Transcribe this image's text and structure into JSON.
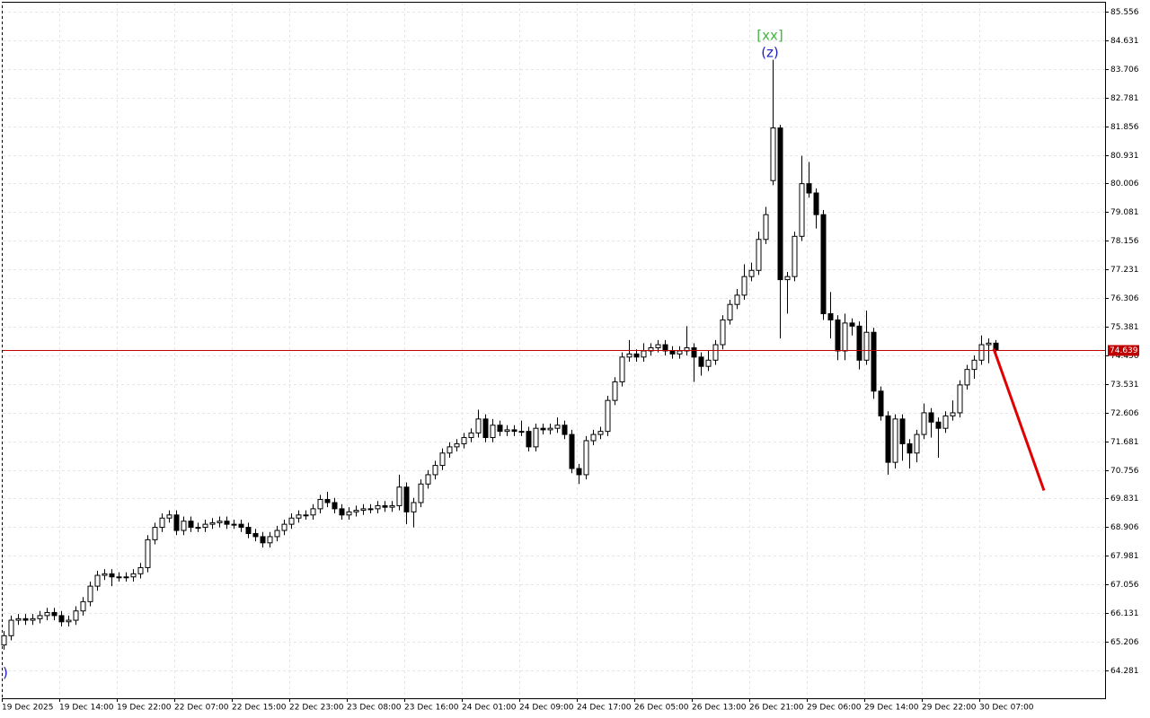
{
  "chart_data": {
    "type": "candlestick",
    "categories": [
      "19 Dec 2025",
      null,
      null,
      null,
      null,
      null,
      null,
      null,
      "19 Dec 14:00",
      null,
      null,
      null,
      null,
      null,
      null,
      null,
      "19 Dec 22:00",
      null,
      null,
      null,
      null,
      null,
      null,
      null,
      "22 Dec 07:00",
      null,
      null,
      null,
      null,
      null,
      null,
      null,
      "22 Dec 15:00",
      null,
      null,
      null,
      null,
      null,
      null,
      null,
      "22 Dec 23:00",
      null,
      null,
      null,
      null,
      null,
      null,
      null,
      "23 Dec 08:00",
      null,
      null,
      null,
      null,
      null,
      null,
      null,
      "23 Dec 16:00",
      null,
      null,
      null,
      null,
      null,
      null,
      null,
      "24 Dec 01:00",
      null,
      null,
      null,
      null,
      null,
      null,
      null,
      "24 Dec 09:00",
      null,
      null,
      null,
      null,
      null,
      null,
      null,
      "24 Dec 17:00",
      null,
      null,
      null,
      null,
      null,
      null,
      null,
      "26 Dec 05:00",
      null,
      null,
      null,
      null,
      null,
      null,
      null,
      "26 Dec 13:00",
      null,
      null,
      null,
      null,
      null,
      null,
      null,
      "26 Dec 21:00",
      null,
      null,
      null,
      null,
      null,
      null,
      null,
      "29 Dec 06:00",
      null,
      null,
      null,
      null,
      null,
      null,
      null,
      "29 Dec 14:00",
      null,
      null,
      null,
      null,
      null,
      null,
      null,
      "29 Dec 22:00",
      null,
      null,
      null,
      null,
      null,
      null,
      null,
      "30 Dec 07:00",
      null,
      null
    ],
    "candles": [
      [
        65.1,
        65.55,
        64.95,
        65.4
      ],
      [
        65.4,
        66.05,
        65.25,
        65.9
      ],
      [
        65.9,
        66.1,
        65.75,
        65.95
      ],
      [
        65.95,
        66.1,
        65.75,
        65.9
      ],
      [
        65.9,
        66.1,
        65.75,
        65.95
      ],
      [
        65.95,
        66.2,
        65.8,
        66.05
      ],
      [
        66.05,
        66.3,
        65.9,
        66.15
      ],
      [
        66.15,
        66.3,
        65.9,
        66.05
      ],
      [
        66.05,
        66.2,
        65.7,
        65.85
      ],
      [
        65.85,
        66.05,
        65.7,
        65.9
      ],
      [
        65.9,
        66.35,
        65.75,
        66.2
      ],
      [
        66.2,
        66.65,
        66.05,
        66.5
      ],
      [
        66.5,
        67.15,
        66.35,
        67.0
      ],
      [
        67.0,
        67.5,
        66.85,
        67.35
      ],
      [
        67.35,
        67.55,
        67.2,
        67.4
      ],
      [
        67.4,
        67.55,
        67.0,
        67.3
      ],
      [
        67.3,
        67.45,
        67.15,
        67.3
      ],
      [
        67.3,
        67.45,
        67.15,
        67.3
      ],
      [
        67.3,
        67.55,
        67.15,
        67.4
      ],
      [
        67.4,
        67.75,
        67.25,
        67.6
      ],
      [
        67.6,
        68.65,
        67.45,
        68.5
      ],
      [
        68.5,
        69.05,
        68.35,
        68.9
      ],
      [
        68.9,
        69.35,
        68.75,
        69.2
      ],
      [
        69.2,
        69.45,
        69.05,
        69.3
      ],
      [
        69.3,
        69.45,
        68.65,
        68.8
      ],
      [
        68.8,
        69.25,
        68.65,
        69.1
      ],
      [
        69.1,
        69.25,
        68.75,
        68.9
      ],
      [
        68.9,
        69.05,
        68.75,
        68.9
      ],
      [
        68.9,
        69.15,
        68.75,
        69.0
      ],
      [
        69.0,
        69.2,
        68.85,
        69.05
      ],
      [
        69.05,
        69.25,
        68.9,
        69.1
      ],
      [
        69.1,
        69.25,
        68.85,
        69.0
      ],
      [
        69.0,
        69.15,
        68.85,
        69.0
      ],
      [
        69.0,
        69.15,
        68.75,
        68.9
      ],
      [
        68.9,
        69.05,
        68.55,
        68.7
      ],
      [
        68.7,
        68.85,
        68.45,
        68.6
      ],
      [
        68.6,
        68.75,
        68.25,
        68.4
      ],
      [
        68.4,
        68.75,
        68.25,
        68.6
      ],
      [
        68.6,
        68.95,
        68.45,
        68.8
      ],
      [
        68.8,
        69.15,
        68.65,
        69.0
      ],
      [
        69.0,
        69.35,
        68.85,
        69.2
      ],
      [
        69.2,
        69.45,
        69.05,
        69.3
      ],
      [
        69.3,
        69.45,
        69.15,
        69.3
      ],
      [
        69.3,
        69.65,
        69.15,
        69.5
      ],
      [
        69.5,
        69.95,
        69.35,
        69.8
      ],
      [
        69.8,
        70.05,
        69.55,
        69.7
      ],
      [
        69.7,
        69.85,
        69.35,
        69.5
      ],
      [
        69.5,
        69.65,
        69.15,
        69.3
      ],
      [
        69.3,
        69.55,
        69.15,
        69.4
      ],
      [
        69.4,
        69.6,
        69.25,
        69.45
      ],
      [
        69.45,
        69.65,
        69.3,
        69.5
      ],
      [
        69.5,
        69.65,
        69.35,
        69.5
      ],
      [
        69.5,
        69.75,
        69.35,
        69.6
      ],
      [
        69.6,
        69.75,
        69.4,
        69.55
      ],
      [
        69.55,
        69.75,
        69.4,
        69.6
      ],
      [
        69.6,
        70.6,
        69.45,
        70.2
      ],
      [
        70.2,
        70.35,
        69.0,
        69.4
      ],
      [
        69.4,
        69.85,
        68.9,
        69.7
      ],
      [
        69.7,
        70.45,
        69.55,
        70.3
      ],
      [
        70.3,
        70.75,
        70.15,
        70.6
      ],
      [
        70.6,
        71.05,
        70.45,
        70.9
      ],
      [
        70.9,
        71.45,
        70.75,
        71.3
      ],
      [
        71.3,
        71.65,
        71.15,
        71.5
      ],
      [
        71.5,
        71.75,
        71.35,
        71.6
      ],
      [
        71.6,
        71.95,
        71.45,
        71.8
      ],
      [
        71.8,
        72.1,
        71.65,
        71.95
      ],
      [
        71.95,
        72.7,
        71.8,
        72.4
      ],
      [
        72.4,
        72.55,
        71.65,
        71.8
      ],
      [
        71.8,
        72.4,
        71.65,
        72.2
      ],
      [
        72.2,
        72.35,
        71.85,
        72.0
      ],
      [
        72.0,
        72.2,
        71.85,
        72.05
      ],
      [
        72.05,
        72.2,
        71.85,
        72.0
      ],
      [
        72.0,
        72.35,
        71.85,
        72.0
      ],
      [
        72.0,
        72.15,
        71.35,
        71.5
      ],
      [
        71.5,
        72.25,
        71.35,
        72.1
      ],
      [
        72.1,
        72.25,
        71.9,
        72.05
      ],
      [
        72.05,
        72.25,
        71.9,
        72.1
      ],
      [
        72.1,
        72.45,
        71.95,
        72.2
      ],
      [
        72.2,
        72.35,
        71.75,
        71.9
      ],
      [
        71.9,
        72.05,
        70.65,
        70.8
      ],
      [
        70.8,
        70.95,
        70.3,
        70.6
      ],
      [
        70.6,
        71.85,
        70.45,
        71.7
      ],
      [
        71.7,
        72.05,
        71.55,
        71.9
      ],
      [
        71.9,
        72.15,
        71.75,
        72.0
      ],
      [
        72.0,
        73.15,
        71.85,
        73.0
      ],
      [
        73.0,
        73.75,
        72.85,
        73.6
      ],
      [
        73.6,
        74.55,
        73.45,
        74.4
      ],
      [
        74.4,
        74.95,
        74.25,
        74.5
      ],
      [
        74.5,
        74.65,
        74.25,
        74.4
      ],
      [
        74.4,
        74.85,
        74.25,
        74.6
      ],
      [
        74.6,
        74.85,
        74.45,
        74.7
      ],
      [
        74.7,
        74.95,
        74.55,
        74.8
      ],
      [
        74.8,
        74.95,
        74.45,
        74.6
      ],
      [
        74.6,
        74.75,
        74.35,
        74.5
      ],
      [
        74.5,
        74.75,
        74.35,
        74.6
      ],
      [
        74.6,
        75.4,
        74.45,
        74.7
      ],
      [
        74.7,
        74.85,
        73.6,
        74.4
      ],
      [
        74.4,
        74.55,
        73.8,
        74.1
      ],
      [
        74.1,
        74.6,
        73.95,
        74.3
      ],
      [
        74.3,
        74.95,
        74.15,
        74.8
      ],
      [
        74.8,
        75.75,
        74.65,
        75.6
      ],
      [
        75.6,
        76.25,
        75.45,
        76.1
      ],
      [
        76.1,
        76.6,
        75.95,
        76.4
      ],
      [
        76.4,
        77.4,
        76.25,
        77.0
      ],
      [
        77.0,
        77.45,
        76.85,
        77.2
      ],
      [
        77.2,
        78.45,
        77.05,
        78.2
      ],
      [
        78.2,
        79.25,
        78.05,
        79.0
      ],
      [
        80.1,
        84.0,
        79.95,
        81.8
      ],
      [
        81.8,
        81.9,
        75.0,
        76.9
      ],
      [
        76.9,
        77.15,
        75.8,
        77.0
      ],
      [
        77.0,
        78.45,
        76.85,
        78.3
      ],
      [
        78.3,
        80.9,
        78.15,
        80.0
      ],
      [
        80.0,
        80.7,
        79.55,
        79.7
      ],
      [
        79.7,
        79.85,
        78.55,
        79.0
      ],
      [
        79.0,
        79.15,
        75.6,
        75.8
      ],
      [
        75.8,
        76.5,
        75.0,
        75.6
      ],
      [
        75.6,
        75.75,
        74.3,
        74.6
      ],
      [
        74.6,
        75.8,
        74.3,
        75.5
      ],
      [
        75.5,
        75.65,
        75.1,
        75.4
      ],
      [
        75.4,
        75.55,
        74.0,
        74.3
      ],
      [
        74.3,
        75.9,
        74.15,
        75.2
      ],
      [
        75.2,
        75.35,
        73.05,
        73.3
      ],
      [
        73.3,
        73.45,
        72.35,
        72.5
      ],
      [
        72.5,
        72.65,
        70.6,
        71.0
      ],
      [
        71.0,
        72.55,
        70.8,
        72.4
      ],
      [
        72.4,
        72.55,
        71.05,
        71.6
      ],
      [
        71.6,
        71.75,
        70.8,
        71.3
      ],
      [
        71.3,
        72.05,
        71.0,
        71.9
      ],
      [
        71.9,
        72.9,
        71.75,
        72.6
      ],
      [
        72.6,
        72.75,
        71.8,
        72.3
      ],
      [
        72.3,
        72.45,
        71.15,
        72.1
      ],
      [
        72.1,
        72.65,
        71.95,
        72.5
      ],
      [
        72.5,
        73.0,
        72.35,
        72.6
      ],
      [
        72.6,
        73.65,
        72.45,
        73.5
      ],
      [
        73.5,
        74.15,
        73.35,
        74.0
      ],
      [
        74.0,
        74.45,
        73.7,
        74.3
      ],
      [
        74.3,
        75.1,
        74.15,
        74.8
      ],
      [
        74.8,
        75.0,
        74.2,
        74.85
      ],
      [
        74.85,
        74.95,
        74.45,
        74.639
      ]
    ],
    "up_color": "#ffffff",
    "down_color": "#000000",
    "ylim": [
      63.38,
      85.875
    ],
    "yticks": [
      85.556,
      84.631,
      83.706,
      82.781,
      81.856,
      80.931,
      80.006,
      79.081,
      78.156,
      77.231,
      76.306,
      75.381,
      74.456,
      73.531,
      72.606,
      71.681,
      70.756,
      69.831,
      68.906,
      67.981,
      67.056,
      66.131,
      65.206,
      64.281
    ],
    "grid": true,
    "current_price": {
      "value": 74.639,
      "color": "#c00000"
    },
    "forecast": {
      "color": "#e00000",
      "values": [
        74.67,
        70.09
      ]
    },
    "annotations": [
      "[xx]",
      "(z)",
      ")"
    ]
  }
}
